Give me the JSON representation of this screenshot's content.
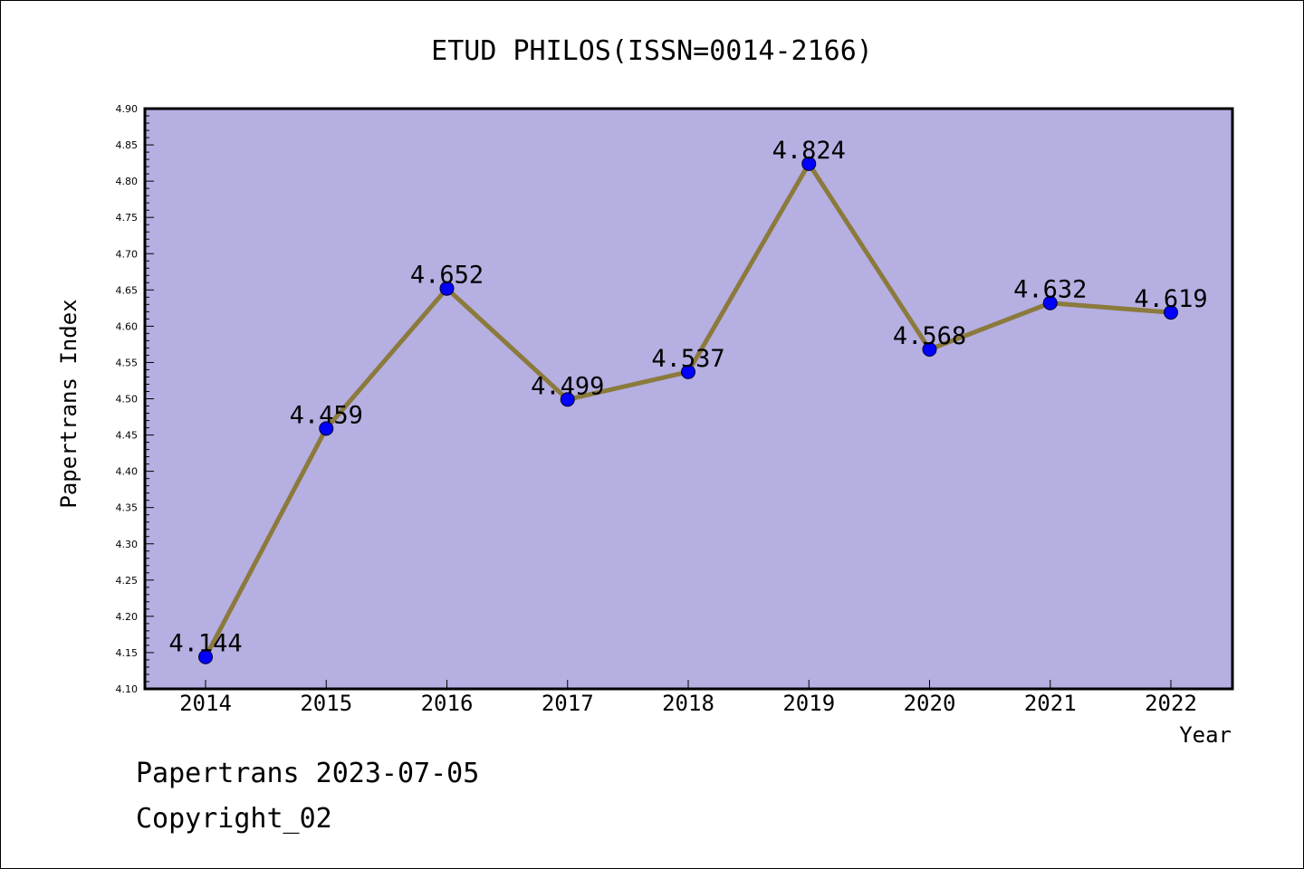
{
  "chart_data": {
    "type": "line",
    "title": "ETUD PHILOS(ISSN=0014-2166)",
    "xlabel": "Year",
    "ylabel": "Papertrans Index",
    "categories": [
      "2014",
      "2015",
      "2016",
      "2017",
      "2018",
      "2019",
      "2020",
      "2021",
      "2022"
    ],
    "values": [
      4.144,
      4.459,
      4.652,
      4.499,
      4.537,
      4.824,
      4.568,
      4.632,
      4.619
    ],
    "data_labels": [
      "4.144",
      "4.459",
      "4.652",
      "4.499",
      "4.537",
      "4.824",
      "4.568",
      "4.632",
      "4.619"
    ],
    "ylim": [
      4.1,
      4.9
    ],
    "yticks": [
      "4.10",
      "4.15",
      "4.20",
      "4.25",
      "4.30",
      "4.35",
      "4.40",
      "4.45",
      "4.50",
      "4.55",
      "4.60",
      "4.65",
      "4.70",
      "4.75",
      "4.80",
      "4.85",
      "4.90"
    ],
    "grid": false,
    "legend": "none",
    "colors": {
      "plot_background": "#b5afe2",
      "line": "#8b7a3c",
      "marker": "#0000ff"
    }
  },
  "footer": {
    "date_line": "Papertrans 2023-07-05",
    "copyright": "Copyright_02"
  }
}
